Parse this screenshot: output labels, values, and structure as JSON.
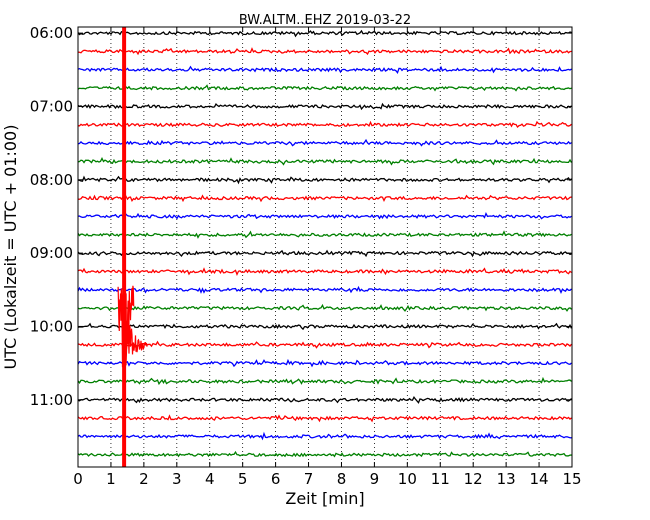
{
  "chart_data": {
    "type": "line",
    "title": "BW.ALTM..EHZ 2019-03-22",
    "xlabel": "Zeit  [min]",
    "ylabel": "UTC (Lokalzeit = UTC + 01:00)",
    "xlim": [
      0,
      15
    ],
    "x_ticks": [
      "0",
      "1",
      "2",
      "3",
      "4",
      "5",
      "6",
      "7",
      "8",
      "9",
      "10",
      "11",
      "12",
      "13",
      "14",
      "15"
    ],
    "y_ticks": [
      "06:00",
      "07:00",
      "08:00",
      "09:00",
      "10:00",
      "11:00"
    ],
    "ylim_minutes_after_0600": [
      -5,
      355
    ],
    "grid": {
      "x": true,
      "y": false,
      "style": "dotted"
    },
    "trace_interval_min": 15,
    "trace_colors": [
      "#000000",
      "#ff0000",
      "#0000ff",
      "#008000"
    ],
    "series": [
      {
        "start": "06:00",
        "color": "#000000"
      },
      {
        "start": "06:15",
        "color": "#ff0000"
      },
      {
        "start": "06:30",
        "color": "#0000ff"
      },
      {
        "start": "06:45",
        "color": "#008000"
      },
      {
        "start": "07:00",
        "color": "#000000"
      },
      {
        "start": "07:15",
        "color": "#ff0000"
      },
      {
        "start": "07:30",
        "color": "#0000ff"
      },
      {
        "start": "07:45",
        "color": "#008000"
      },
      {
        "start": "08:00",
        "color": "#000000"
      },
      {
        "start": "08:15",
        "color": "#ff0000"
      },
      {
        "start": "08:30",
        "color": "#0000ff"
      },
      {
        "start": "08:45",
        "color": "#008000"
      },
      {
        "start": "09:00",
        "color": "#000000"
      },
      {
        "start": "09:15",
        "color": "#ff0000"
      },
      {
        "start": "09:30",
        "color": "#0000ff"
      },
      {
        "start": "09:45",
        "color": "#008000"
      },
      {
        "start": "10:00",
        "color": "#000000"
      },
      {
        "start": "10:15",
        "color": "#ff0000",
        "event": {
          "x_start": 1.35,
          "x_end": 2.1,
          "peak_x": 1.4
        }
      },
      {
        "start": "10:30",
        "color": "#0000ff"
      },
      {
        "start": "10:45",
        "color": "#008000"
      },
      {
        "start": "11:00",
        "color": "#000000"
      },
      {
        "start": "11:15",
        "color": "#ff0000"
      },
      {
        "start": "11:30",
        "color": "#0000ff"
      },
      {
        "start": "11:45",
        "color": "#008000"
      }
    ]
  }
}
